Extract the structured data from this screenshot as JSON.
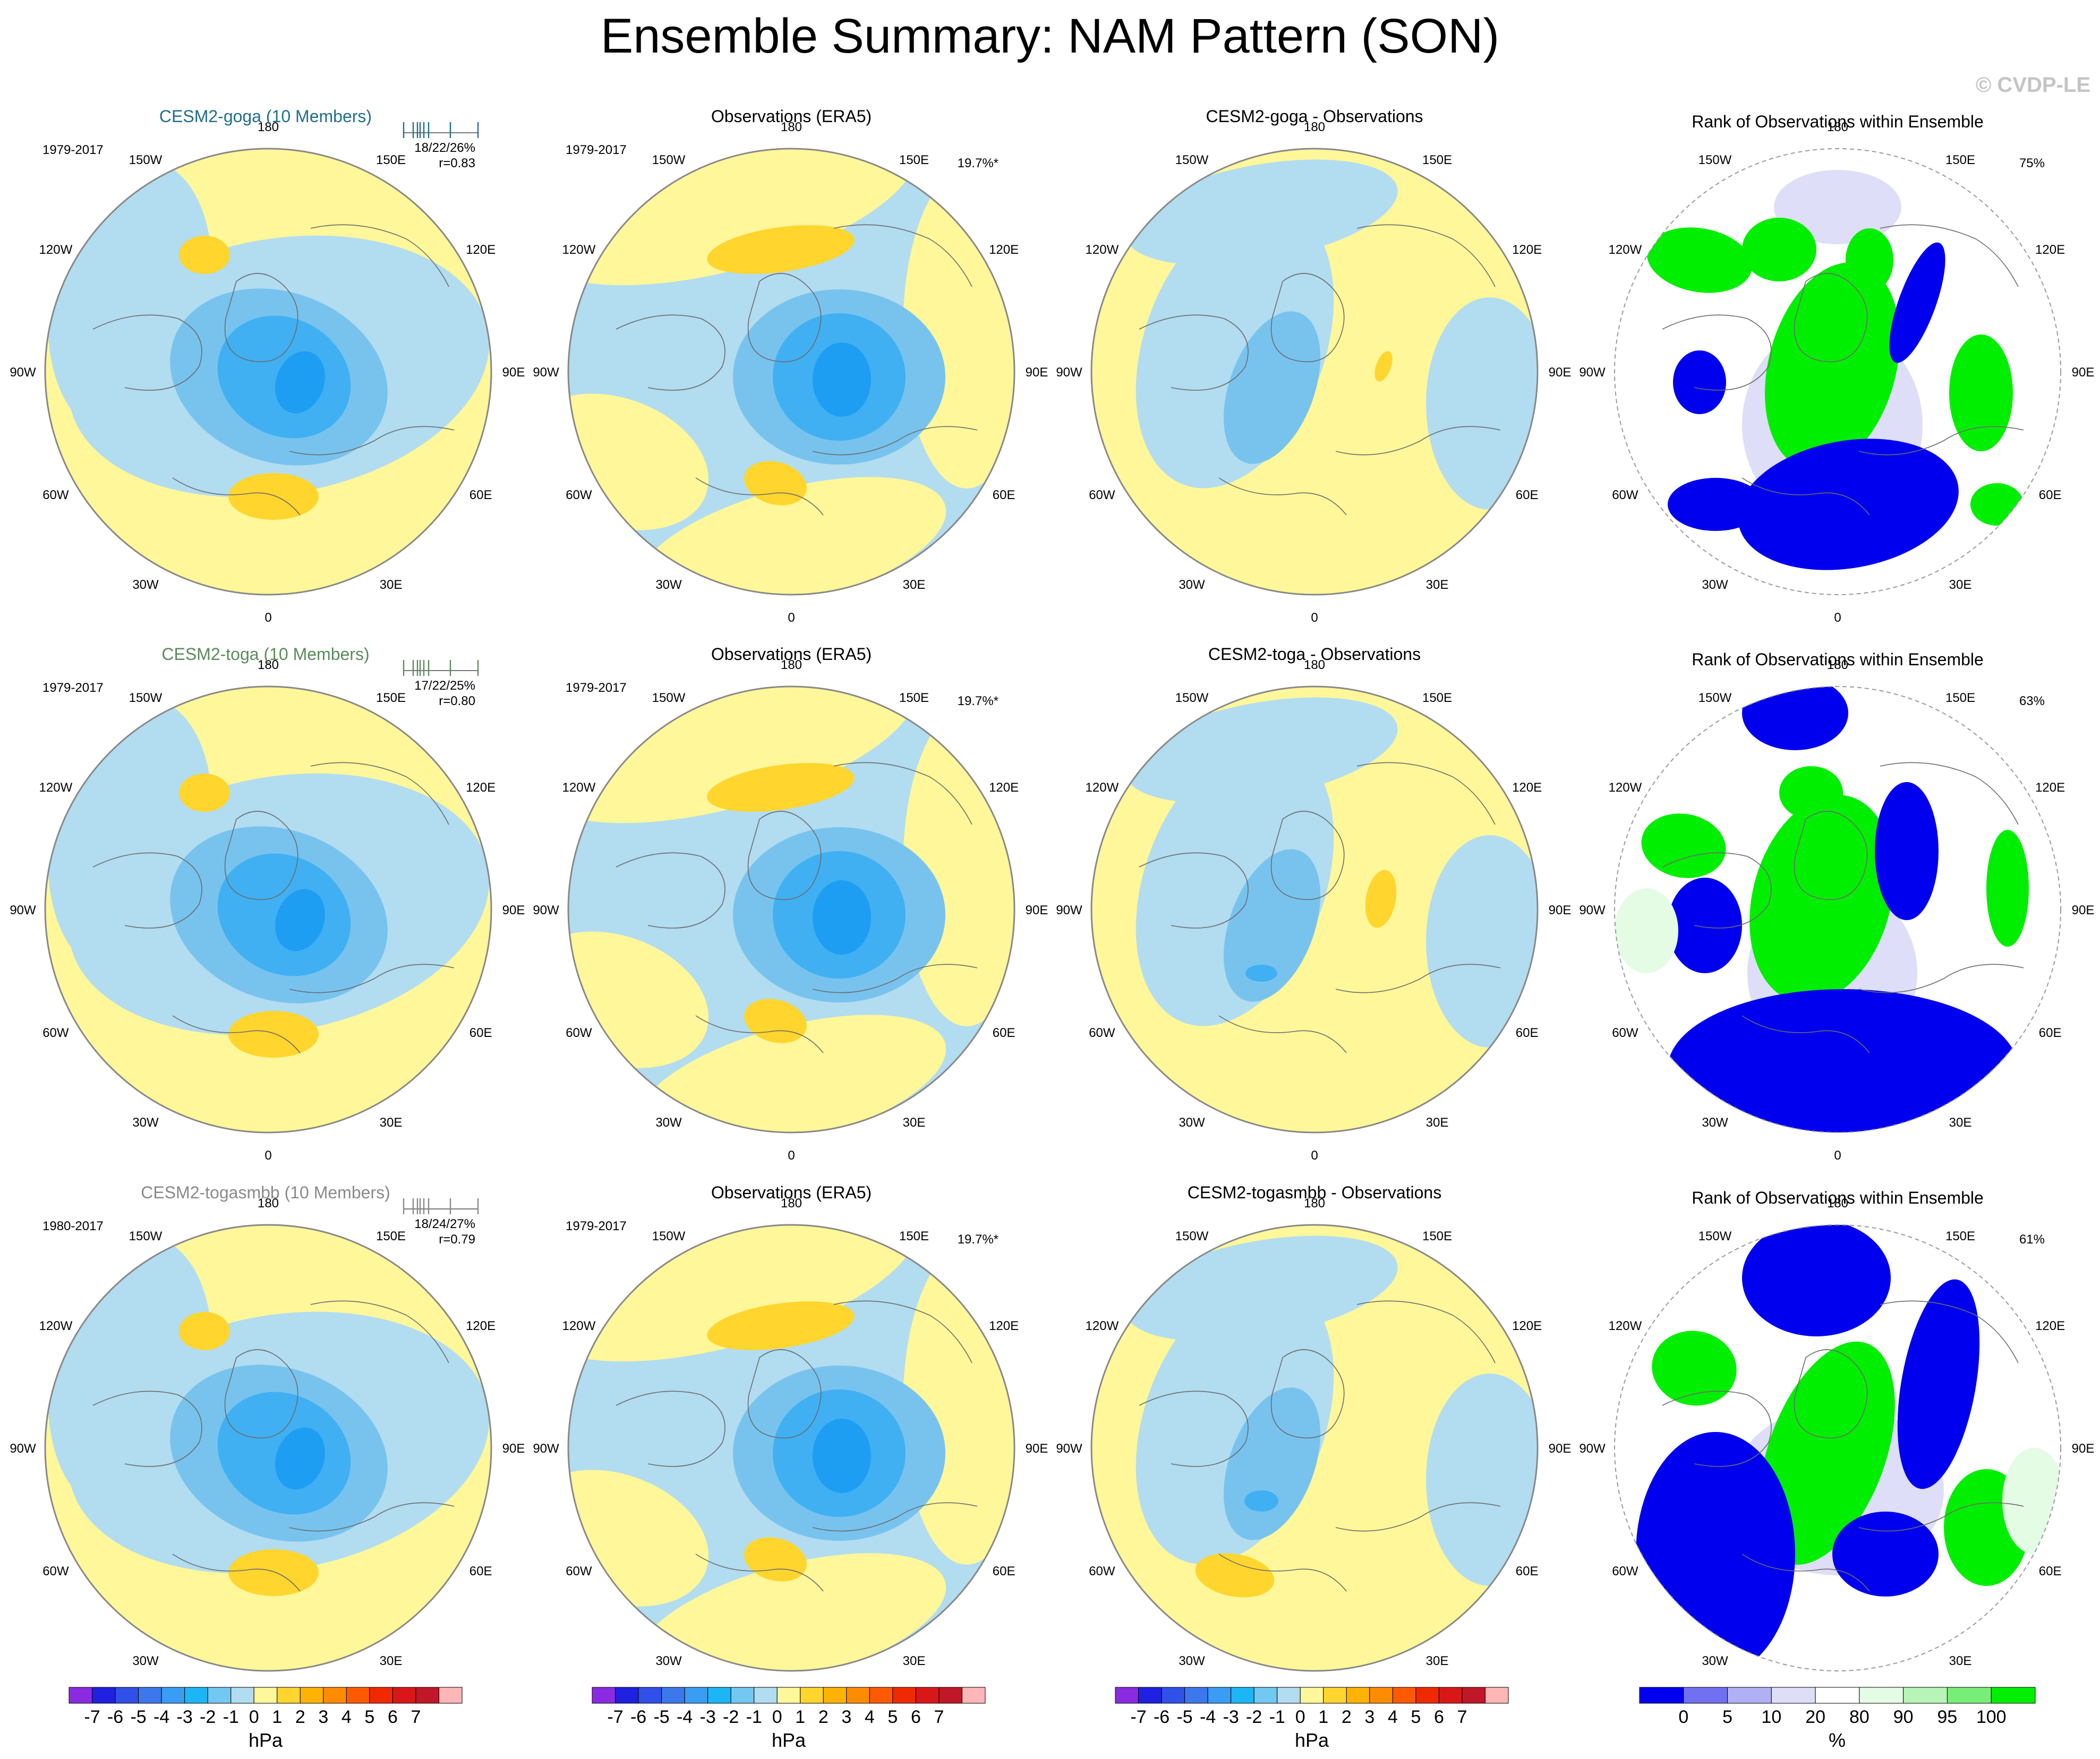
{
  "title": "Ensemble Summary: NAM Pattern (SON)",
  "watermark": "© CVDP-LE",
  "colors": {
    "positive": "#fff799",
    "positive2": "#ffd52e",
    "negative1": "#b2dcf0",
    "negative2": "#78c3ee",
    "negative3": "#40b0f2",
    "negative4": "#1d9ef3",
    "rank_low": "#0000ee",
    "rank_low2": "#dedef8",
    "rank_high": "#00ee00",
    "rank_high2": "#e4fbe4",
    "member_title_goga": "#1f6e8c",
    "member_title_toga": "#5b8b5b",
    "member_title_togasmbb": "#8a8a8a"
  },
  "longitude_labels": [
    "180",
    "150E",
    "120E",
    "90E",
    "60E",
    "30E",
    "0",
    "30W",
    "60W",
    "90W",
    "120W",
    "150W"
  ],
  "rows": [
    {
      "model": {
        "title": "CESM2-goga (10 Members)",
        "years": "1979-2017",
        "stats": "18/22/26%",
        "corr": "r=0.83"
      },
      "obs": {
        "title": "Observations (ERA5)",
        "years": "1979-2017",
        "pct": "19.7%*"
      },
      "diff": {
        "title": "CESM2-goga - Observations"
      },
      "rank": {
        "title": "Rank of Observations within Ensemble",
        "pct": "75%"
      }
    },
    {
      "model": {
        "title": "CESM2-toga (10 Members)",
        "years": "1979-2017",
        "stats": "17/22/25%",
        "corr": "r=0.80"
      },
      "obs": {
        "title": "Observations (ERA5)",
        "years": "1979-2017",
        "pct": "19.7%*"
      },
      "diff": {
        "title": "CESM2-toga - Observations"
      },
      "rank": {
        "title": "Rank of Observations within Ensemble",
        "pct": "63%"
      }
    },
    {
      "model": {
        "title": "CESM2-togasmbb (10 Members)",
        "years": "1980-2017",
        "stats": "18/24/27%",
        "corr": "r=0.79"
      },
      "obs": {
        "title": "Observations (ERA5)",
        "years": "1979-2017",
        "pct": "19.7%*"
      },
      "diff": {
        "title": "CESM2-togasmbb - Observations"
      },
      "rank": {
        "title": "Rank of Observations within Ensemble",
        "pct": "61%"
      }
    }
  ],
  "colorbar_hpa": {
    "labels": [
      "-7",
      "-6",
      "-5",
      "-4",
      "-3",
      "-2",
      "-1",
      "0",
      "1",
      "2",
      "3",
      "4",
      "5",
      "6",
      "7"
    ],
    "unit": "hPa",
    "colors": [
      "#8a2be2",
      "#2020e0",
      "#3050e8",
      "#3c78ec",
      "#3a9cf2",
      "#1db6f4",
      "#72c8f0",
      "#b2dcf0",
      "#fff799",
      "#ffd52e",
      "#ffb300",
      "#ff8c00",
      "#ff5a00",
      "#f02a00",
      "#d81818",
      "#c01828",
      "#ffb6b6"
    ]
  },
  "colorbar_rank": {
    "labels": [
      "0",
      "5",
      "10",
      "20",
      "80",
      "90",
      "95",
      "100"
    ],
    "unit": "%",
    "colors": [
      "#0000ee",
      "#7070f0",
      "#b0b0f4",
      "#dedef8",
      "#ffffff",
      "#e4fbe4",
      "#b8f4b8",
      "#78ee78",
      "#00ee00"
    ]
  }
}
